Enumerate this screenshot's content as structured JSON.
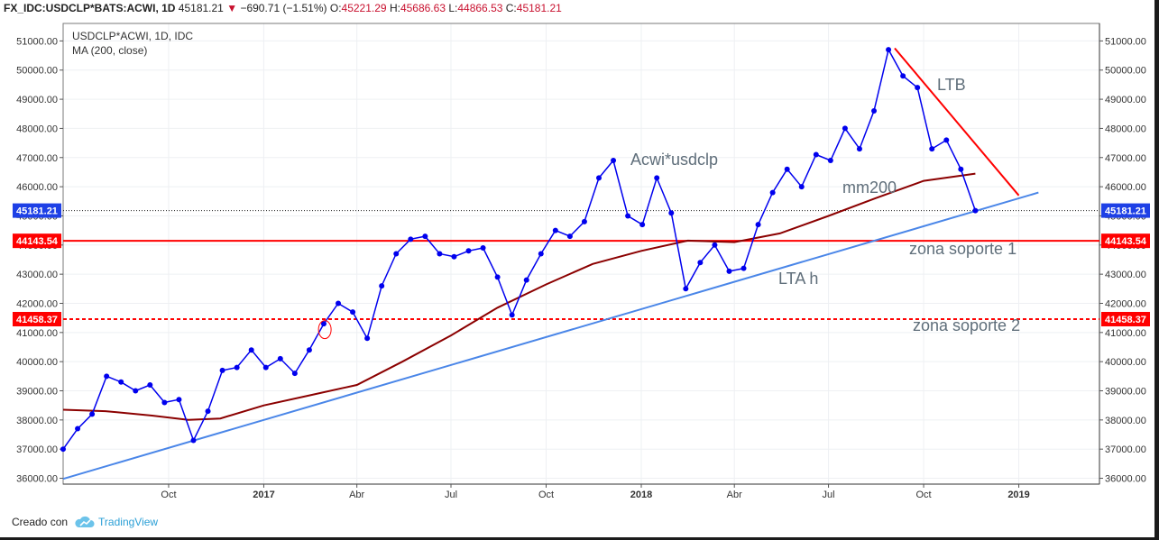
{
  "header": {
    "symbol": "FX_IDC:USDCLP*BATS:ACWI, 1D",
    "last": "45181.21",
    "change": "−690.71 (−1.51%)",
    "open_label": "O:",
    "open": "45221.29",
    "high_label": "H:",
    "high": "45686.63",
    "low_label": "L:",
    "low": "44866.53",
    "close_label": "C:",
    "close": "45181.21"
  },
  "legend": {
    "title": "USDCLP*ACWI, 1D, IDC",
    "indicator": "MA (200, close)"
  },
  "annotations": {
    "series_label": "Acwi*usdclp",
    "ltb": "LTB",
    "mm200": "mm200",
    "zona1": "zona soporte 1",
    "lta": "LTA h",
    "zona2": "zona soporte 2"
  },
  "footer": {
    "created_with": "Creado con",
    "brand": "TradingView"
  },
  "colors": {
    "price": "#0000ee",
    "ma": "#8b0000",
    "support1": "#ff0000",
    "support2": "#ff0000",
    "ltb": "#ff0000",
    "lta": "#4a86e8",
    "annotation_text": "#5f6e7a",
    "grid": "#eef0f3"
  },
  "chart_data": {
    "type": "line",
    "title": "USDCLP*ACWI, 1D, IDC",
    "x_tick_labels": [
      "Oct",
      "2017",
      "Abr",
      "Jul",
      "Oct",
      "2018",
      "Abr",
      "Jul",
      "Oct",
      "2019"
    ],
    "x_tick_dates": [
      "2016-10-01",
      "2017-01-01",
      "2017-04-01",
      "2017-07-01",
      "2017-10-01",
      "2018-01-01",
      "2018-04-01",
      "2018-07-01",
      "2018-10-01",
      "2019-01-01"
    ],
    "x_range": [
      "2016-06-21",
      "2019-03-20"
    ],
    "y_ticks": [
      36000,
      37000,
      38000,
      39000,
      40000,
      41000,
      42000,
      43000,
      44000,
      45000,
      46000,
      47000,
      48000,
      49000,
      50000,
      51000
    ],
    "y_tick_labels": [
      "36000.00",
      "37000.00",
      "38000.00",
      "39000.00",
      "40000.00",
      "41000.00",
      "42000.00",
      "43000.00",
      "44000.00",
      "45000.00",
      "46000.00",
      "47000.00",
      "48000.00",
      "49000.00",
      "50000.00",
      "51000.00"
    ],
    "ylim": [
      35800,
      51600
    ],
    "price_tag": {
      "value": 45181.21,
      "label": "45181.21"
    },
    "horizontal_levels": [
      {
        "name": "zona soporte 1",
        "value": 44143.54,
        "label": "44143.54",
        "style": "solid"
      },
      {
        "name": "zona soporte 2",
        "value": 41458.37,
        "label": "41458.37",
        "style": "dashed"
      }
    ],
    "trend_lines": [
      {
        "name": "LTA h",
        "points": [
          [
            "2016-06-21",
            35980
          ],
          [
            "2019-01-20",
            45800
          ]
        ]
      },
      {
        "name": "LTB",
        "points": [
          [
            "2018-09-03",
            50750
          ],
          [
            "2019-01-01",
            45700
          ]
        ]
      }
    ],
    "series": [
      {
        "name": "Acwi*usdclp",
        "x": [
          "2016-06-21",
          "2016-07-05",
          "2016-07-19",
          "2016-08-02",
          "2016-08-16",
          "2016-08-30",
          "2016-09-13",
          "2016-09-27",
          "2016-10-11",
          "2016-10-25",
          "2016-11-08",
          "2016-11-22",
          "2016-12-06",
          "2016-12-20",
          "2017-01-03",
          "2017-01-17",
          "2017-01-31",
          "2017-02-14",
          "2017-02-28",
          "2017-03-14",
          "2017-03-28",
          "2017-04-11",
          "2017-04-25",
          "2017-05-09",
          "2017-05-23",
          "2017-06-06",
          "2017-06-20",
          "2017-07-04",
          "2017-07-18",
          "2017-08-01",
          "2017-08-15",
          "2017-08-29",
          "2017-09-12",
          "2017-09-26",
          "2017-10-10",
          "2017-10-24",
          "2017-11-07",
          "2017-11-21",
          "2017-12-05",
          "2017-12-19",
          "2018-01-02",
          "2018-01-16",
          "2018-01-30",
          "2018-02-13",
          "2018-02-27",
          "2018-03-13",
          "2018-03-27",
          "2018-04-10",
          "2018-04-24",
          "2018-05-08",
          "2018-05-22",
          "2018-06-05",
          "2018-06-19",
          "2018-07-03",
          "2018-07-17",
          "2018-07-31",
          "2018-08-14",
          "2018-08-28",
          "2018-09-11",
          "2018-09-25",
          "2018-10-09",
          "2018-10-23",
          "2018-11-06",
          "2018-11-20"
        ],
        "values": [
          37000,
          37700,
          38200,
          39500,
          39300,
          39000,
          39200,
          38600,
          38700,
          37300,
          38300,
          39700,
          39800,
          40400,
          39800,
          40100,
          39600,
          40400,
          41300,
          42000,
          41700,
          40800,
          42600,
          43700,
          44200,
          44300,
          43700,
          43600,
          43800,
          43900,
          42900,
          41600,
          42800,
          43700,
          44500,
          44300,
          44800,
          46300,
          46900,
          45000,
          44700,
          46300,
          45100,
          42500,
          43400,
          44000,
          43100,
          43200,
          44700,
          45800,
          46600,
          46000,
          47100,
          46900,
          48000,
          47300,
          48600,
          50700,
          49800,
          49400,
          47300,
          47600,
          46600,
          45181
        ]
      },
      {
        "name": "MA (200, close)",
        "x": [
          "2016-06-21",
          "2016-08-01",
          "2016-09-15",
          "2016-10-20",
          "2016-11-20",
          "2017-01-01",
          "2017-02-15",
          "2017-04-01",
          "2017-05-15",
          "2017-07-01",
          "2017-08-15",
          "2017-10-01",
          "2017-11-15",
          "2018-01-01",
          "2018-02-15",
          "2018-04-01",
          "2018-05-15",
          "2018-07-01",
          "2018-08-15",
          "2018-10-01",
          "2018-11-20"
        ],
        "values": [
          38350,
          38300,
          38150,
          38000,
          38050,
          38500,
          38850,
          39200,
          40000,
          40900,
          41850,
          42650,
          43350,
          43800,
          44150,
          44100,
          44400,
          45000,
          45600,
          46200,
          46450
        ]
      }
    ],
    "highlight_circle": {
      "x": "2017-03-01",
      "y": 41100
    }
  }
}
